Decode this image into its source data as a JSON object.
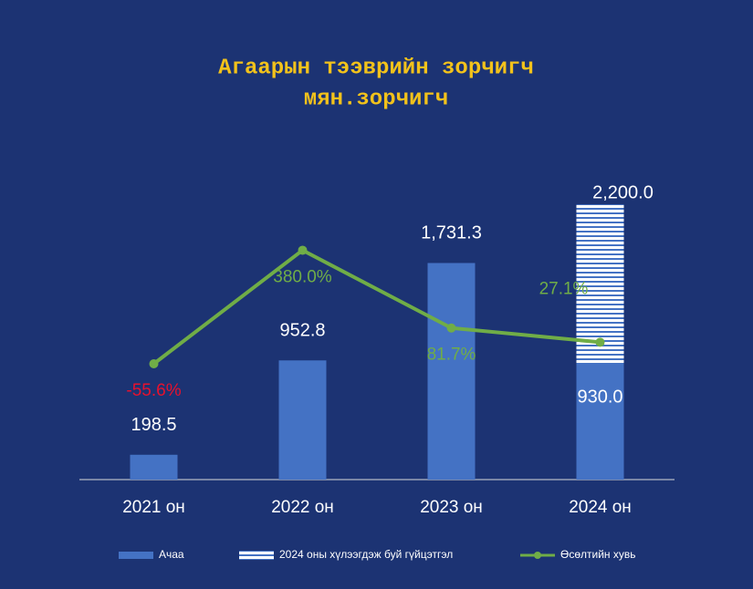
{
  "chart_data": {
    "type": "bar",
    "title": [
      "Агаарын тээврийн зорчигч",
      "мян.зорчигч"
    ],
    "categories": [
      "2021 он",
      "2022 он",
      "2023 он",
      "2024 он"
    ],
    "ylim": [
      0,
      2500
    ],
    "y2lim": [
      -500,
      700
    ],
    "series": [
      {
        "name": "2024 оны хүлээгдэж буй гүйцэтгэл",
        "kind": "hatched",
        "color": "#4472c4",
        "values": [
          null,
          null,
          null,
          2200.0
        ],
        "value_labels": [
          null,
          null,
          null,
          "2,200.0"
        ]
      },
      {
        "name": "Ачаа",
        "kind": "bar",
        "color": "#4472c4",
        "values": [
          198.5,
          952.8,
          1731.3,
          930.0
        ],
        "value_labels": [
          "198.5",
          "952.8",
          "1,731.3",
          "930.0"
        ]
      },
      {
        "name": "Өсөлтийн хувь",
        "kind": "line",
        "axis": "y2",
        "color": "#70ad47",
        "values": [
          -55.6,
          380.0,
          81.7,
          27.1
        ],
        "value_labels": [
          "-55.6%",
          "380.0%",
          "81.7%",
          "27.1%"
        ],
        "positive_color": "#70ad47",
        "negative_color": "#e8112d"
      }
    ]
  }
}
